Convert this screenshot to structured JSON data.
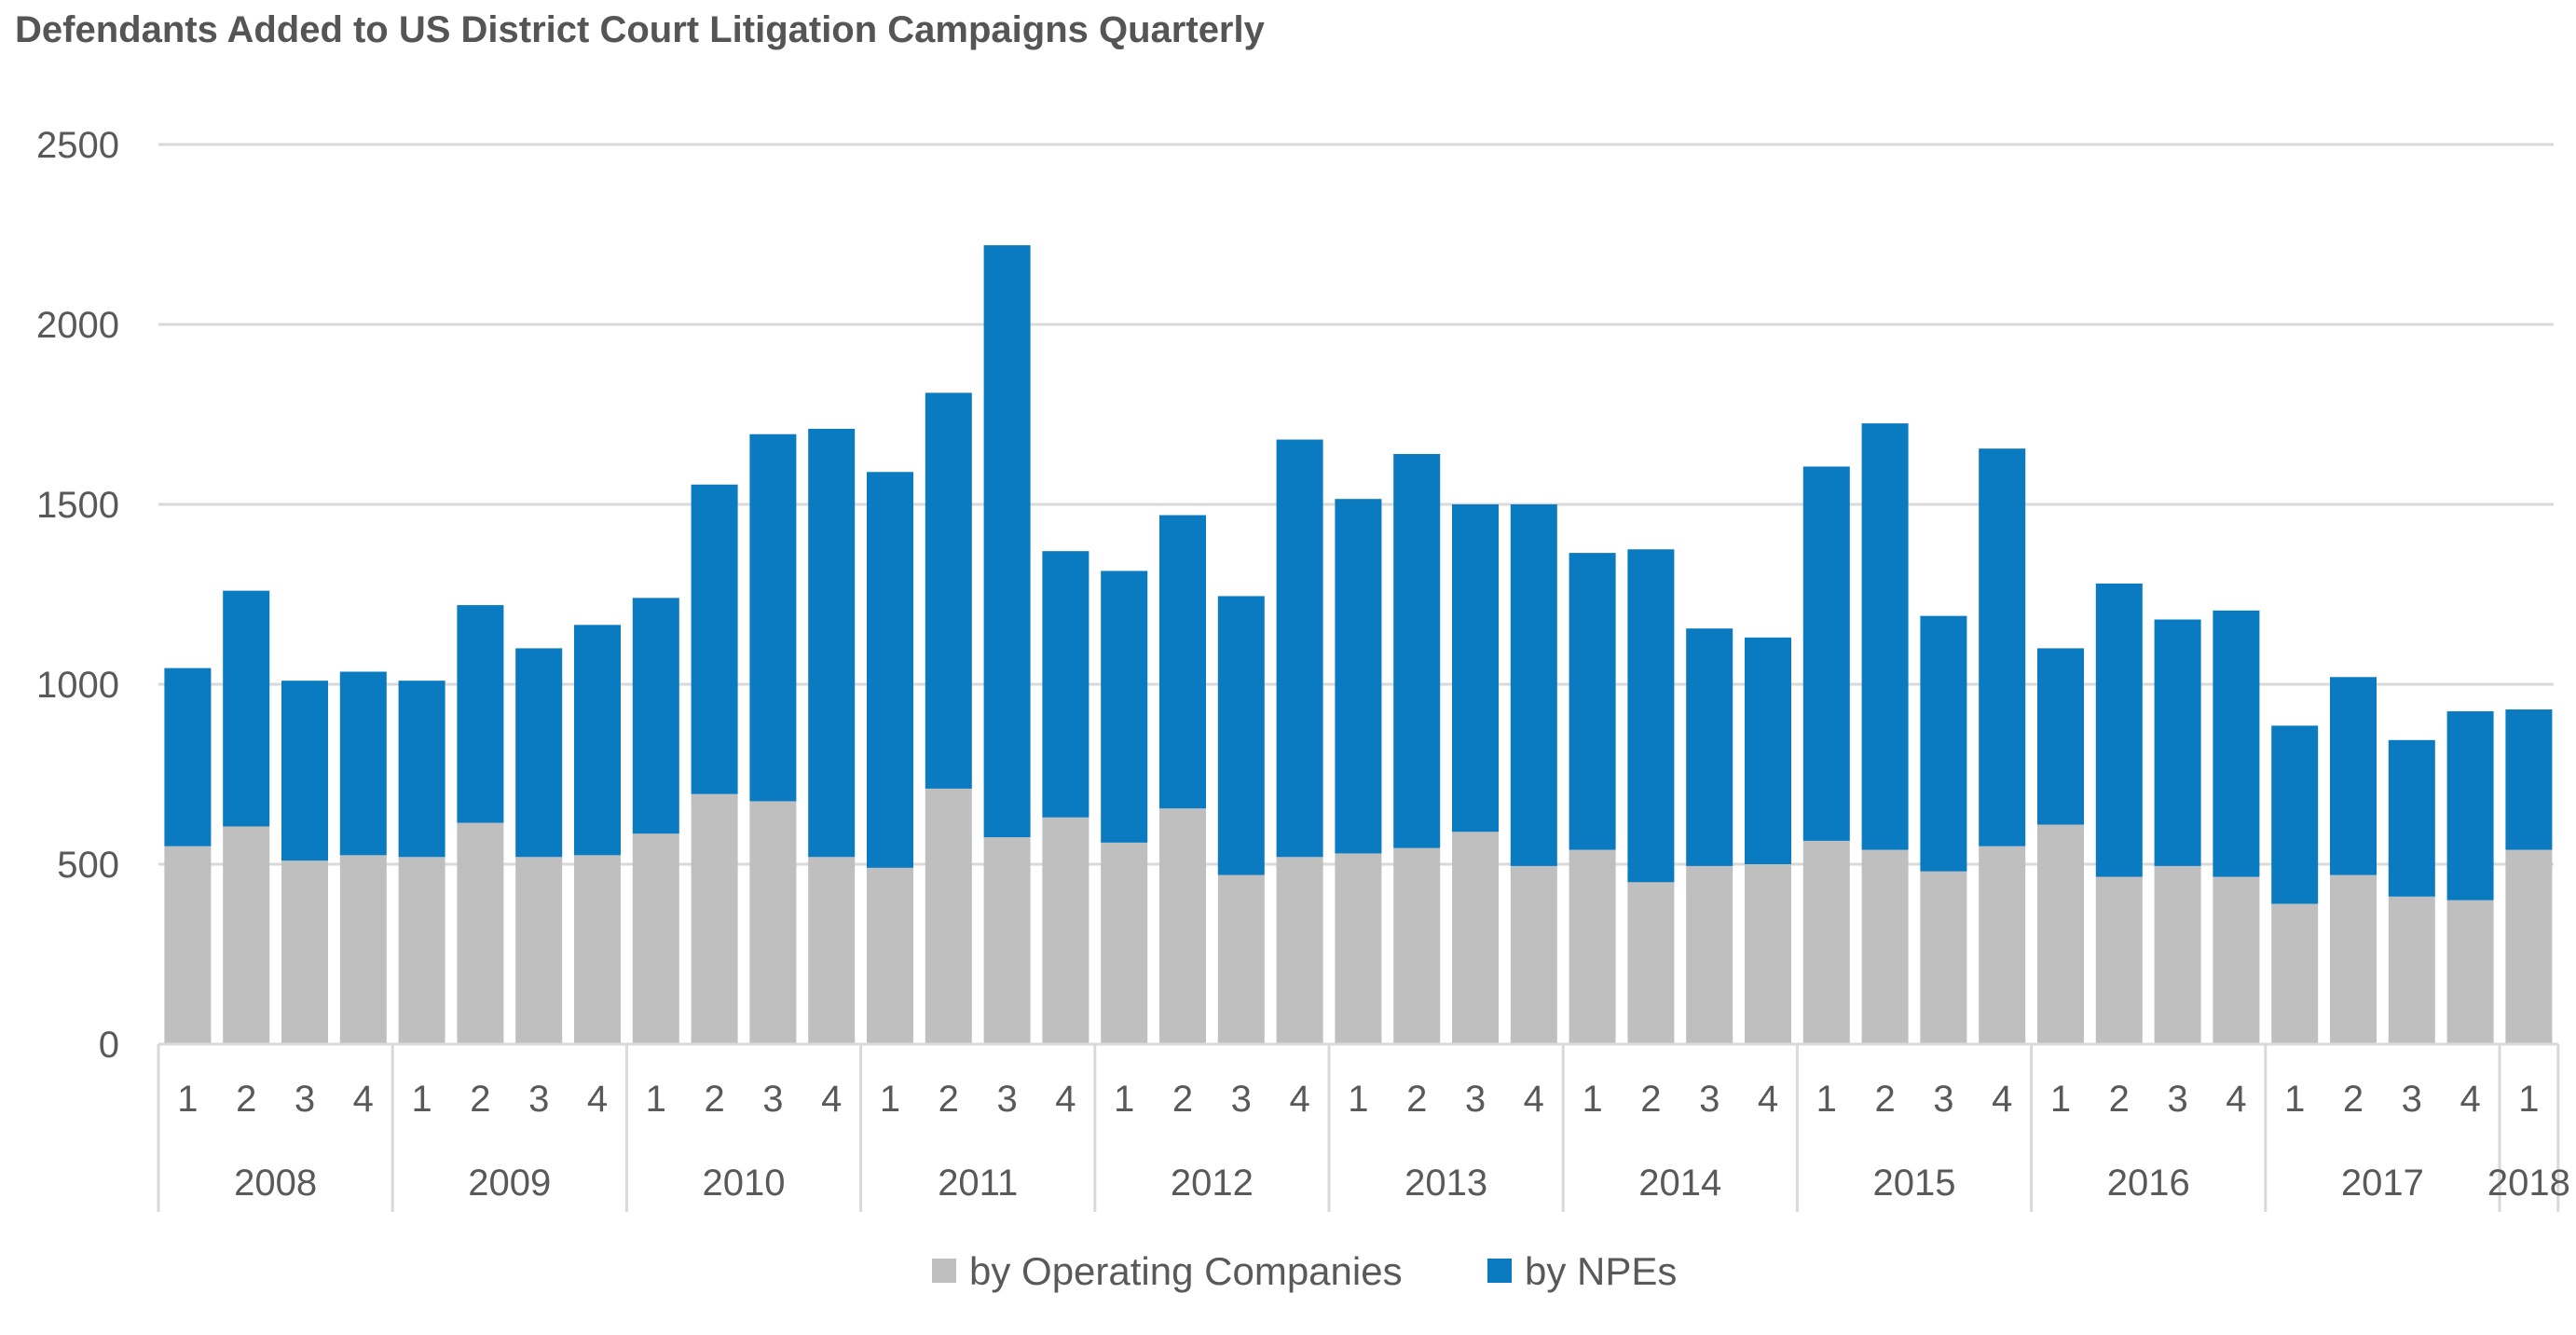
{
  "chart_data": {
    "type": "bar",
    "stacked": true,
    "title": "Defendants Added to US District Court Litigation Campaigns Quarterly",
    "xlabel": "",
    "ylabel": "",
    "ylim": [
      0,
      2500
    ],
    "y_ticks": [
      "0",
      "500",
      "1000",
      "1500",
      "2000",
      "2500"
    ],
    "grid": "horizontal",
    "legend_position": "bottom",
    "years": [
      {
        "label": "2008",
        "quarters": 4
      },
      {
        "label": "2009",
        "quarters": 4
      },
      {
        "label": "2010",
        "quarters": 4
      },
      {
        "label": "2011",
        "quarters": 4
      },
      {
        "label": "2012",
        "quarters": 4
      },
      {
        "label": "2013",
        "quarters": 4
      },
      {
        "label": "2014",
        "quarters": 4
      },
      {
        "label": "2015",
        "quarters": 4
      },
      {
        "label": "2016",
        "quarters": 4
      },
      {
        "label": "2017",
        "quarters": 4
      },
      {
        "label": "2018",
        "quarters": 1
      }
    ],
    "categories": [
      "1",
      "2",
      "3",
      "4",
      "1",
      "2",
      "3",
      "4",
      "1",
      "2",
      "3",
      "4",
      "1",
      "2",
      "3",
      "4",
      "1",
      "2",
      "3",
      "4",
      "1",
      "2",
      "3",
      "4",
      "1",
      "2",
      "3",
      "4",
      "1",
      "2",
      "3",
      "4",
      "1",
      "2",
      "3",
      "4",
      "1",
      "2",
      "3",
      "4",
      "1"
    ],
    "series": [
      {
        "name": "by Operating Companies",
        "color": "#bfbfbf",
        "values": [
          550,
          605,
          510,
          525,
          520,
          615,
          520,
          525,
          585,
          695,
          675,
          520,
          490,
          710,
          575,
          630,
          560,
          655,
          470,
          520,
          530,
          545,
          590,
          495,
          540,
          450,
          495,
          500,
          565,
          540,
          480,
          550,
          610,
          465,
          495,
          465,
          390,
          470,
          410,
          400,
          540
        ]
      },
      {
        "name": "by NPEs",
        "color": "#0a7bc0",
        "values": [
          495,
          655,
          500,
          510,
          490,
          605,
          580,
          640,
          655,
          860,
          1020,
          1190,
          1100,
          1100,
          1645,
          740,
          755,
          815,
          775,
          1160,
          985,
          1095,
          910,
          1005,
          825,
          925,
          660,
          630,
          1040,
          1185,
          710,
          1105,
          490,
          815,
          685,
          740,
          495,
          550,
          435,
          525,
          390
        ]
      }
    ]
  }
}
